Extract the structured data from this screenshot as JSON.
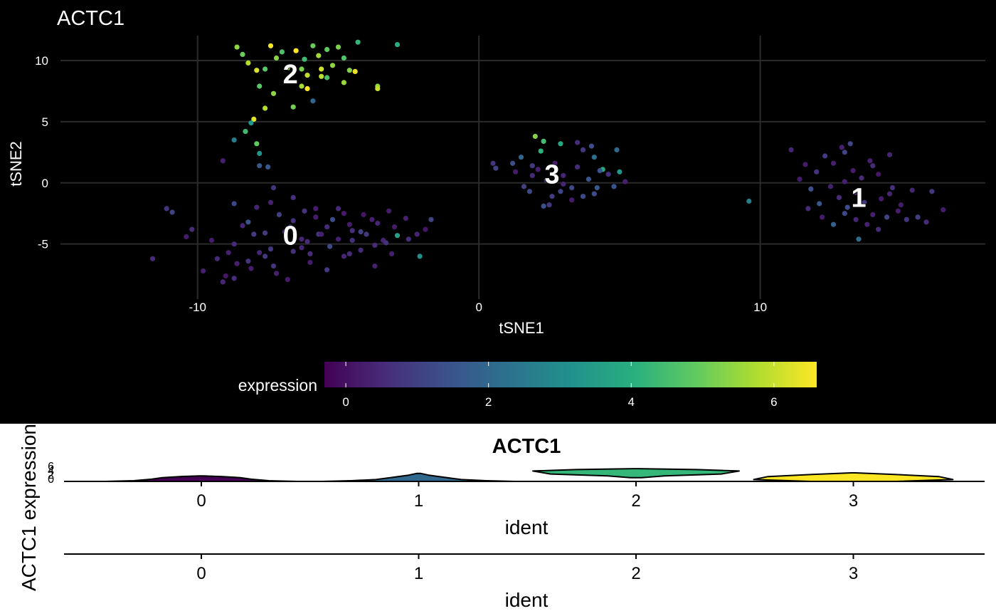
{
  "chart_data": [
    {
      "type": "scatter",
      "title": "ACTC1",
      "xlabel": "tSNE1",
      "ylabel": "tSNE2",
      "xlim": [
        -15,
        18
      ],
      "ylim": [
        -9.5,
        12.5
      ],
      "xticks": [
        -10,
        0,
        10
      ],
      "yticks": [
        -5,
        0,
        5,
        10
      ],
      "grid": true,
      "background": "#000000",
      "color_scale": "viridis",
      "color_legend": {
        "title": "expression",
        "range": [
          -0.3,
          6.6
        ],
        "ticks": [
          0,
          2,
          4,
          6
        ],
        "placement": "bottom"
      },
      "cluster_labels": [
        {
          "text": "0",
          "x": -6.7,
          "y": -4.3
        },
        {
          "text": "1",
          "x": 13.5,
          "y": -1.2
        },
        {
          "text": "2",
          "x": -6.7,
          "y": 8.9
        },
        {
          "text": "3",
          "x": 2.6,
          "y": 0.7
        }
      ],
      "points": [
        [
          -9.8,
          -7.2,
          0.3
        ],
        [
          -9.3,
          -6.2,
          0.5
        ],
        [
          -9.5,
          -4.7,
          0.2
        ],
        [
          -9.0,
          -7.6,
          0.1
        ],
        [
          -8.7,
          -5.0,
          0.5
        ],
        [
          -8.2,
          -6.4,
          0.7
        ],
        [
          -8.0,
          -4.2,
          0.9
        ],
        [
          -7.8,
          -5.7,
          0.4
        ],
        [
          -7.4,
          -5.4,
          0.8
        ],
        [
          -7.2,
          -7.4,
          0.3
        ],
        [
          -6.9,
          -4.0,
          0.5
        ],
        [
          -6.6,
          -5.6,
          0.6
        ],
        [
          -6.3,
          -5.3,
          0.4
        ],
        [
          -6.0,
          -6.5,
          0.2
        ],
        [
          -5.7,
          -4.2,
          0.7
        ],
        [
          -5.3,
          -5.2,
          1.2
        ],
        [
          -5.0,
          -4.6,
          0.3
        ],
        [
          -4.8,
          -6.0,
          0.4
        ],
        [
          -4.5,
          -3.9,
          0.6
        ],
        [
          -4.2,
          -5.5,
          0.5
        ],
        [
          -4.0,
          -4.2,
          0.8
        ],
        [
          -3.7,
          -5.1,
          0.5
        ],
        [
          -3.4,
          -4.7,
          0.4
        ],
        [
          -3.1,
          -5.8,
          0.3
        ],
        [
          -2.9,
          -4.3,
          3.6
        ],
        [
          -2.5,
          -4.6,
          0.6
        ],
        [
          -2.1,
          -6.0,
          3.1
        ],
        [
          -1.7,
          -3.0,
          1.1
        ],
        [
          -8.7,
          -1.7,
          1.2
        ],
        [
          -8.2,
          -3.2,
          1.4
        ],
        [
          -7.9,
          -2.0,
          0.4
        ],
        [
          -7.4,
          -1.6,
          0.3
        ],
        [
          -7.1,
          -2.6,
          1.0
        ],
        [
          -6.6,
          -3.1,
          0.6
        ],
        [
          -6.2,
          -2.3,
          0.7
        ],
        [
          -5.8,
          -2.8,
          0.2
        ],
        [
          -5.4,
          -3.6,
          0.5
        ],
        [
          -5.0,
          -2.1,
          0.5
        ],
        [
          -4.6,
          -3.4,
          0.2
        ],
        [
          -4.2,
          -4.0,
          1.0
        ],
        [
          -3.8,
          -3.0,
          0.3
        ],
        [
          -3.3,
          -4.9,
          0.6
        ],
        [
          -3.0,
          -3.6,
          0.2
        ],
        [
          -2.6,
          -2.9,
          0.3
        ],
        [
          -2.2,
          -4.2,
          0.4
        ],
        [
          -1.9,
          -3.8,
          0.1
        ],
        [
          -8.4,
          -3.5,
          0.4
        ],
        [
          -7.6,
          -4.1,
          0.9
        ],
        [
          -6.7,
          -3.6,
          1.1
        ],
        [
          -6.1,
          -4.8,
          0.5
        ],
        [
          -5.6,
          -4.2,
          0.3
        ],
        [
          -5.2,
          -3.0,
          1.3
        ],
        [
          -4.8,
          -2.5,
          0.2
        ],
        [
          -4.5,
          -4.7,
          0.6
        ],
        [
          -4.1,
          -2.6,
          0.1
        ],
        [
          -3.6,
          -3.3,
          0.4
        ],
        [
          -3.2,
          -2.3,
          0.2
        ],
        [
          -3.7,
          -6.8,
          0.3
        ],
        [
          -4.6,
          -5.8,
          0.5
        ],
        [
          -7.6,
          -6.0,
          0.8
        ],
        [
          -8.1,
          -7.0,
          0.2
        ],
        [
          -8.9,
          -5.7,
          0.3
        ],
        [
          -8.7,
          -7.8,
          0.6
        ],
        [
          -9.1,
          -8.1,
          0.4
        ],
        [
          -10.2,
          -3.8,
          0.5
        ],
        [
          -10.4,
          -4.4,
          0.2
        ],
        [
          -11.6,
          -6.2,
          0.5
        ],
        [
          -11.1,
          -2.1,
          0.7
        ],
        [
          -10.9,
          -2.4,
          1.1
        ],
        [
          -9.1,
          1.8,
          0.3
        ],
        [
          -7.8,
          1.4,
          1.6
        ],
        [
          -7.3,
          -0.4,
          0.7
        ],
        [
          -6.6,
          -1.2,
          0.6
        ],
        [
          -6.3,
          -4.6,
          0.4
        ],
        [
          -5.8,
          -2.1,
          0.2
        ],
        [
          -6.0,
          -5.8,
          0.5
        ],
        [
          -5.4,
          -7.1,
          0.8
        ],
        [
          -6.8,
          -7.9,
          0.2
        ],
        [
          -7.3,
          -6.8,
          0.7
        ],
        [
          -8.6,
          -6.6,
          0.3
        ],
        [
          11.1,
          2.7,
          0.4
        ],
        [
          11.6,
          1.5,
          0.2
        ],
        [
          12.0,
          0.9,
          0.7
        ],
        [
          12.3,
          2.2,
          0.9
        ],
        [
          12.6,
          1.6,
          0.3
        ],
        [
          13.0,
          2.5,
          1.1
        ],
        [
          13.3,
          1.0,
          0.2
        ],
        [
          13.6,
          0.4,
          0.5
        ],
        [
          13.9,
          1.8,
          0.3
        ],
        [
          14.2,
          0.7,
          0.1
        ],
        [
          14.6,
          2.3,
          0.4
        ],
        [
          11.4,
          0.3,
          0.2
        ],
        [
          11.8,
          -0.5,
          1.4
        ],
        [
          12.1,
          -1.7,
          1.6
        ],
        [
          12.5,
          -0.3,
          0.3
        ],
        [
          12.8,
          -1.2,
          0.5
        ],
        [
          13.1,
          -2.0,
          1.3
        ],
        [
          13.4,
          -0.8,
          0.4
        ],
        [
          13.7,
          -1.6,
          0.8
        ],
        [
          14.0,
          -2.6,
          0.3
        ],
        [
          14.3,
          -1.3,
          0.2
        ],
        [
          14.7,
          -0.4,
          0.6
        ],
        [
          15.0,
          -1.8,
          0.2
        ],
        [
          15.4,
          -0.6,
          0.4
        ],
        [
          11.7,
          -2.1,
          0.5
        ],
        [
          12.2,
          -2.8,
          0.2
        ],
        [
          12.6,
          -3.4,
          1.8
        ],
        [
          13.0,
          -2.5,
          1.2
        ],
        [
          13.4,
          -3.0,
          0.4
        ],
        [
          13.8,
          -3.4,
          0.3
        ],
        [
          14.2,
          -3.8,
          0.5
        ],
        [
          14.5,
          -2.8,
          1.1
        ],
        [
          14.9,
          -2.3,
          0.2
        ],
        [
          15.2,
          -3.0,
          0.7
        ],
        [
          15.6,
          -2.8,
          1.0
        ],
        [
          15.9,
          -3.2,
          0.5
        ],
        [
          16.1,
          -0.7,
          0.8
        ],
        [
          16.5,
          -2.2,
          0.2
        ],
        [
          13.5,
          -4.6,
          2.1
        ],
        [
          12.9,
          2.9,
          0.3
        ],
        [
          13.2,
          3.2,
          1.2
        ],
        [
          14.0,
          1.4,
          0.5
        ],
        [
          13.0,
          0.1,
          0.3
        ],
        [
          14.6,
          -0.9,
          0.4
        ],
        [
          9.6,
          -1.5,
          2.6
        ],
        [
          0.5,
          1.6,
          0.7
        ],
        [
          0.6,
          1.2,
          1.1
        ],
        [
          1.2,
          1.6,
          1.3
        ],
        [
          1.3,
          0.9,
          0.2
        ],
        [
          1.5,
          2.1,
          1.9
        ],
        [
          1.6,
          -0.3,
          1.0
        ],
        [
          1.9,
          0.6,
          0.5
        ],
        [
          2.1,
          1.1,
          0.3
        ],
        [
          2.2,
          2.6,
          4.1
        ],
        [
          2.4,
          0.2,
          0.5
        ],
        [
          2.7,
          1.6,
          0.2
        ],
        [
          2.9,
          3.2,
          3.8
        ],
        [
          3.0,
          0.6,
          0.4
        ],
        [
          3.3,
          -0.4,
          1.2
        ],
        [
          3.5,
          1.3,
          0.5
        ],
        [
          3.7,
          2.7,
          0.8
        ],
        [
          3.9,
          0.3,
          1.5
        ],
        [
          4.2,
          -0.4,
          1.6
        ],
        [
          4.4,
          1.1,
          3.9
        ],
        [
          4.6,
          0.7,
          0.6
        ],
        [
          4.9,
          2.7,
          2.0
        ],
        [
          5.0,
          0.9,
          3.3
        ],
        [
          5.2,
          0.1,
          0.3
        ],
        [
          2.3,
          3.4,
          4.5
        ],
        [
          1.8,
          -0.7,
          1.2
        ],
        [
          2.6,
          -1.1,
          0.9
        ],
        [
          2.3,
          -1.9,
          1.4
        ],
        [
          2.5,
          -1.8,
          0.8
        ],
        [
          2.9,
          -0.7,
          1.1
        ],
        [
          3.0,
          -0.1,
          0.4
        ],
        [
          3.3,
          -1.4,
          0.2
        ],
        [
          3.7,
          -1.1,
          1.2
        ],
        [
          4.1,
          -0.9,
          1.3
        ],
        [
          4.3,
          1.0,
          1.5
        ],
        [
          4.1,
          2.1,
          2.2
        ],
        [
          3.5,
          3.3,
          0.5
        ],
        [
          1.9,
          1.4,
          0.9
        ],
        [
          4.0,
          3.0,
          1.3
        ],
        [
          2.0,
          3.8,
          5.3
        ],
        [
          4.8,
          -0.3,
          1.5
        ],
        [
          -8.6,
          11.1,
          5.4
        ],
        [
          -8.4,
          10.5,
          5.0
        ],
        [
          -8.2,
          9.8,
          5.8
        ],
        [
          -7.9,
          9.2,
          6.2
        ],
        [
          -7.6,
          9.3,
          4.8
        ],
        [
          -7.4,
          11.2,
          6.5
        ],
        [
          -7.2,
          10.2,
          5.3
        ],
        [
          -7.0,
          10.7,
          4.6
        ],
        [
          -6.8,
          9.4,
          5.5
        ],
        [
          -6.5,
          10.8,
          6.8
        ],
        [
          -6.3,
          9.3,
          5.2
        ],
        [
          -6.1,
          8.8,
          5.9
        ],
        [
          -6.2,
          10.1,
          4.4
        ],
        [
          -5.9,
          11.2,
          5.0
        ],
        [
          -5.7,
          10.4,
          5.6
        ],
        [
          -5.6,
          9.3,
          6.1
        ],
        [
          -5.4,
          10.9,
          4.9
        ],
        [
          -5.2,
          9.6,
          5.4
        ],
        [
          -5.0,
          11.1,
          5.2
        ],
        [
          -4.8,
          10.2,
          4.7
        ],
        [
          -4.6,
          9.2,
          5.3
        ],
        [
          -4.4,
          9.1,
          6.4
        ],
        [
          -4.3,
          11.5,
          4.2
        ],
        [
          -4.8,
          8.2,
          5.5
        ],
        [
          -5.4,
          8.6,
          4.6
        ],
        [
          -5.6,
          8.7,
          5.9
        ],
        [
          -6.1,
          7.7,
          6.6
        ],
        [
          -6.3,
          7.9,
          5.7
        ],
        [
          -6.6,
          6.2,
          5.1
        ],
        [
          -7.3,
          7.3,
          5.4
        ],
        [
          -7.8,
          7.9,
          4.8
        ],
        [
          -7.6,
          6.1,
          5.8
        ],
        [
          -8.0,
          5.2,
          6.3
        ],
        [
          -8.1,
          4.9,
          3.3
        ],
        [
          -8.3,
          4.2,
          4.4
        ],
        [
          -8.7,
          3.5,
          2.6
        ],
        [
          -7.9,
          3.2,
          4.9
        ],
        [
          -7.8,
          2.4,
          3.2
        ],
        [
          -7.5,
          1.3,
          1.6
        ],
        [
          -3.6,
          7.9,
          5.4
        ],
        [
          -3.6,
          7.7,
          6.0
        ],
        [
          -2.9,
          11.3,
          4.0
        ],
        [
          -5.9,
          6.7,
          1.9
        ]
      ]
    },
    {
      "type": "violin",
      "title": "ACTC1",
      "xlabel": "ident",
      "ylabel": "ACTC1 expression",
      "categories": [
        "0",
        "1",
        "2",
        "3"
      ],
      "yticks": [
        "0",
        "2",
        "4",
        "6"
      ],
      "colors": [
        "#440154",
        "#31688e",
        "#35b779",
        "#fde725"
      ],
      "ymax": [
        3.0,
        4.3,
        6.9,
        4.6
      ]
    },
    {
      "type": "violin",
      "title": "",
      "xlabel": "ident",
      "ylabel": "",
      "categories": [
        "0",
        "1",
        "2",
        "3"
      ]
    }
  ]
}
